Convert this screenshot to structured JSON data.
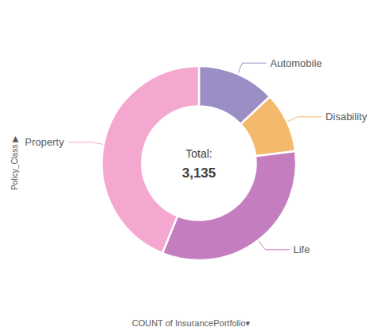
{
  "chart_data": {
    "type": "pie",
    "categories": [
      "Automobile",
      "Disability",
      "Life",
      "Property"
    ],
    "values": [
      408,
      314,
      1038,
      1375
    ],
    "colors": [
      "#9b8ec4",
      "#f5b96e",
      "#c47ec0",
      "#f4a8d0"
    ],
    "annotations": [
      "Total:",
      "3,135",
      "COUNT of InsurancePortfolio▾",
      "Policy_Class ▶"
    ]
  }
}
